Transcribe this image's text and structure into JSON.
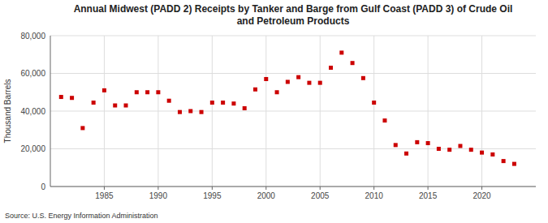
{
  "chart_data": {
    "type": "scatter",
    "title": "Annual Midwest (PADD 2) Receipts by Tanker and Barge from Gulf Coast (PADD 3) of Crude Oil\nand Petroleum Products",
    "y_label": "Thousand Barrels",
    "source": "Source: U.S. Energy Information Administration",
    "color": "#cc0000",
    "marker": "square",
    "grid": true,
    "x": [
      1981,
      1982,
      1983,
      1984,
      1985,
      1986,
      1987,
      1988,
      1989,
      1990,
      1991,
      1992,
      1993,
      1994,
      1995,
      1996,
      1997,
      1998,
      1999,
      2000,
      2001,
      2002,
      2003,
      2004,
      2005,
      2006,
      2007,
      2008,
      2009,
      2010,
      2011,
      2012,
      2013,
      2014,
      2015,
      2016,
      2017,
      2018,
      2019,
      2020,
      2021,
      2022,
      2023
    ],
    "values": [
      47500,
      47000,
      31000,
      44500,
      51000,
      43000,
      43000,
      50000,
      50000,
      50000,
      45500,
      39500,
      40000,
      39500,
      44500,
      44500,
      44000,
      41500,
      51500,
      57000,
      50000,
      55500,
      58000,
      55000,
      55000,
      63000,
      71000,
      65500,
      57500,
      44500,
      35000,
      22000,
      17500,
      23500,
      23000,
      20000,
      19500,
      21500,
      19500,
      18000,
      17000,
      13500,
      12000
    ],
    "xlim": [
      1980,
      2025
    ],
    "xticks": [
      1985,
      1990,
      1995,
      2000,
      2005,
      2010,
      2015,
      2020
    ],
    "ylim": [
      0,
      80000
    ],
    "yticks": [
      0,
      {
        "value": 20000,
        "label": "20,000"
      },
      {
        "value": 40000,
        "label": "40,000"
      },
      {
        "value": 60000,
        "label": "60,000"
      },
      {
        "value": 80000,
        "label": "80,000"
      }
    ]
  }
}
